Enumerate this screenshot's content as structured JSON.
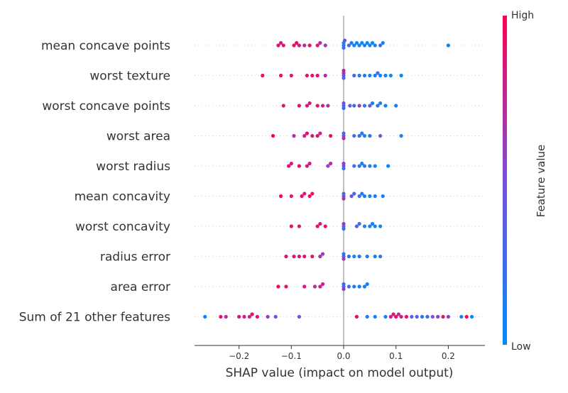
{
  "chart_data": {
    "type": "scatter",
    "subtype": "shap-beeswarm",
    "xlabel": "SHAP value (impact on model output)",
    "xlim": [
      -0.285,
      0.27
    ],
    "xticks": [
      -0.2,
      -0.1,
      0.0,
      0.1,
      0.2
    ],
    "xtick_labels": [
      "−0.2",
      "−0.1",
      "0.0",
      "0.1",
      "0.2"
    ],
    "grid": false,
    "colorbar": {
      "label": "Feature value",
      "high_label": "High",
      "low_label": "Low",
      "low_color": "#008bfb",
      "high_color": "#ff0052"
    },
    "features": [
      {
        "name": "mean concave points",
        "points": [
          [
            -0.125,
            0.9
          ],
          [
            -0.12,
            0.8
          ],
          [
            -0.115,
            0.85
          ],
          [
            -0.095,
            0.9
          ],
          [
            -0.09,
            0.95
          ],
          [
            -0.085,
            0.8
          ],
          [
            -0.075,
            0.75
          ],
          [
            -0.065,
            0.9
          ],
          [
            -0.05,
            0.85
          ],
          [
            -0.045,
            0.7
          ],
          [
            -0.035,
            0.6
          ],
          [
            0.0,
            0.3
          ],
          [
            0.0,
            0.1
          ],
          [
            0.0,
            0.2
          ],
          [
            0.002,
            0.4
          ],
          [
            0.01,
            0.25
          ],
          [
            0.015,
            0.15
          ],
          [
            0.02,
            0.1
          ],
          [
            0.025,
            0.05
          ],
          [
            0.03,
            0.1
          ],
          [
            0.035,
            0.05
          ],
          [
            0.04,
            0.1
          ],
          [
            0.045,
            0.05
          ],
          [
            0.05,
            0.1
          ],
          [
            0.055,
            0.05
          ],
          [
            0.06,
            0.15
          ],
          [
            0.07,
            0.2
          ],
          [
            0.075,
            0.1
          ],
          [
            0.2,
            0.05
          ]
        ]
      },
      {
        "name": "worst texture",
        "points": [
          [
            -0.155,
            0.95
          ],
          [
            -0.12,
            0.9
          ],
          [
            -0.1,
            0.85
          ],
          [
            -0.07,
            0.9
          ],
          [
            -0.06,
            0.85
          ],
          [
            -0.05,
            0.9
          ],
          [
            -0.035,
            0.7
          ],
          [
            0.0,
            0.5
          ],
          [
            0.0,
            0.6
          ],
          [
            0.0,
            0.3
          ],
          [
            0.0,
            0.8
          ],
          [
            0.02,
            0.3
          ],
          [
            0.03,
            0.2
          ],
          [
            0.04,
            0.15
          ],
          [
            0.05,
            0.1
          ],
          [
            0.06,
            0.1
          ],
          [
            0.065,
            0.2
          ],
          [
            0.07,
            0.05
          ],
          [
            0.08,
            0.1
          ],
          [
            0.09,
            0.05
          ],
          [
            0.11,
            0.05
          ]
        ]
      },
      {
        "name": "worst concave points",
        "points": [
          [
            -0.115,
            0.85
          ],
          [
            -0.085,
            0.9
          ],
          [
            -0.07,
            0.8
          ],
          [
            -0.065,
            0.85
          ],
          [
            -0.05,
            0.9
          ],
          [
            -0.04,
            0.8
          ],
          [
            -0.03,
            0.7
          ],
          [
            0.0,
            0.3
          ],
          [
            0.0,
            0.5
          ],
          [
            0.0,
            0.2
          ],
          [
            0.012,
            0.4
          ],
          [
            0.02,
            0.3
          ],
          [
            0.03,
            0.6
          ],
          [
            0.04,
            0.2
          ],
          [
            0.05,
            0.4
          ],
          [
            0.055,
            0.1
          ],
          [
            0.065,
            0.2
          ],
          [
            0.07,
            0.1
          ],
          [
            0.08,
            0.05
          ],
          [
            0.1,
            0.1
          ]
        ]
      },
      {
        "name": "worst area",
        "points": [
          [
            -0.135,
            0.95
          ],
          [
            -0.095,
            0.7
          ],
          [
            -0.075,
            0.8
          ],
          [
            -0.07,
            0.9
          ],
          [
            -0.06,
            0.85
          ],
          [
            -0.05,
            0.9
          ],
          [
            -0.045,
            0.8
          ],
          [
            -0.025,
            0.95
          ],
          [
            0.0,
            0.5
          ],
          [
            0.0,
            0.3
          ],
          [
            0.0,
            0.7
          ],
          [
            0.02,
            0.3
          ],
          [
            0.03,
            0.2
          ],
          [
            0.035,
            0.1
          ],
          [
            0.04,
            0.15
          ],
          [
            0.05,
            0.1
          ],
          [
            0.07,
            0.4
          ],
          [
            0.11,
            0.05
          ]
        ]
      },
      {
        "name": "worst radius",
        "points": [
          [
            -0.105,
            0.9
          ],
          [
            -0.1,
            0.85
          ],
          [
            -0.085,
            0.9
          ],
          [
            -0.07,
            0.8
          ],
          [
            -0.065,
            0.85
          ],
          [
            -0.03,
            0.6
          ],
          [
            -0.025,
            0.7
          ],
          [
            0.0,
            0.4
          ],
          [
            0.0,
            0.6
          ],
          [
            0.0,
            0.2
          ],
          [
            0.02,
            0.3
          ],
          [
            0.03,
            0.2
          ],
          [
            0.035,
            0.1
          ],
          [
            0.04,
            0.2
          ],
          [
            0.05,
            0.15
          ],
          [
            0.06,
            0.1
          ],
          [
            0.085,
            0.05
          ]
        ]
      },
      {
        "name": "mean concavity",
        "points": [
          [
            -0.12,
            0.95
          ],
          [
            -0.1,
            0.85
          ],
          [
            -0.08,
            0.9
          ],
          [
            -0.075,
            0.85
          ],
          [
            -0.065,
            0.9
          ],
          [
            -0.06,
            0.95
          ],
          [
            0.0,
            0.5
          ],
          [
            0.0,
            0.3
          ],
          [
            0.0,
            0.7
          ],
          [
            0.015,
            0.4
          ],
          [
            0.02,
            0.3
          ],
          [
            0.03,
            0.2
          ],
          [
            0.035,
            0.1
          ],
          [
            0.04,
            0.15
          ],
          [
            0.05,
            0.1
          ],
          [
            0.06,
            0.1
          ],
          [
            0.075,
            0.05
          ]
        ]
      },
      {
        "name": "worst concavity",
        "points": [
          [
            -0.1,
            0.9
          ],
          [
            -0.085,
            0.85
          ],
          [
            -0.05,
            0.9
          ],
          [
            -0.045,
            0.85
          ],
          [
            -0.035,
            0.9
          ],
          [
            0.0,
            0.4
          ],
          [
            0.0,
            0.6
          ],
          [
            0.0,
            0.2
          ],
          [
            0.025,
            0.3
          ],
          [
            0.03,
            0.2
          ],
          [
            0.04,
            0.15
          ],
          [
            0.05,
            0.1
          ],
          [
            0.055,
            0.05
          ],
          [
            0.06,
            0.1
          ],
          [
            0.07,
            0.05
          ]
        ]
      },
      {
        "name": "radius error",
        "points": [
          [
            -0.11,
            0.9
          ],
          [
            -0.095,
            0.85
          ],
          [
            -0.085,
            0.9
          ],
          [
            -0.075,
            0.85
          ],
          [
            -0.06,
            0.9
          ],
          [
            -0.045,
            0.7
          ],
          [
            -0.04,
            0.6
          ],
          [
            0.0,
            0.4
          ],
          [
            0.0,
            0.2
          ],
          [
            0.0,
            0.6
          ],
          [
            0.01,
            0.2
          ],
          [
            0.02,
            0.1
          ],
          [
            0.03,
            0.15
          ],
          [
            0.045,
            0.1
          ],
          [
            0.06,
            0.05
          ],
          [
            0.07,
            0.1
          ]
        ]
      },
      {
        "name": "area error",
        "points": [
          [
            -0.125,
            0.95
          ],
          [
            -0.11,
            0.9
          ],
          [
            -0.075,
            0.85
          ],
          [
            -0.055,
            0.7
          ],
          [
            -0.045,
            0.8
          ],
          [
            -0.04,
            0.75
          ],
          [
            0.0,
            0.4
          ],
          [
            0.0,
            0.2
          ],
          [
            0.0,
            0.6
          ],
          [
            0.01,
            0.2
          ],
          [
            0.02,
            0.15
          ],
          [
            0.03,
            0.1
          ],
          [
            0.04,
            0.1
          ],
          [
            0.045,
            0.05
          ]
        ]
      },
      {
        "name": "Sum of 21 other features",
        "points": [
          [
            -0.265,
            0.05
          ],
          [
            -0.235,
            0.9
          ],
          [
            -0.225,
            0.7
          ],
          [
            -0.2,
            0.85
          ],
          [
            -0.19,
            0.8
          ],
          [
            -0.18,
            0.75
          ],
          [
            -0.175,
            0.9
          ],
          [
            -0.165,
            0.85
          ],
          [
            -0.145,
            0.6
          ],
          [
            -0.13,
            0.5
          ],
          [
            -0.085,
            0.45
          ],
          [
            0.025,
            0.9
          ],
          [
            0.045,
            0.1
          ],
          [
            0.06,
            0.1
          ],
          [
            0.08,
            0.15
          ],
          [
            0.09,
            0.8
          ],
          [
            0.095,
            0.85
          ],
          [
            0.1,
            0.9
          ],
          [
            0.105,
            0.75
          ],
          [
            0.11,
            0.85
          ],
          [
            0.12,
            0.9
          ],
          [
            0.13,
            0.4
          ],
          [
            0.14,
            0.3
          ],
          [
            0.15,
            0.2
          ],
          [
            0.16,
            0.25
          ],
          [
            0.17,
            0.5
          ],
          [
            0.18,
            0.55
          ],
          [
            0.19,
            0.85
          ],
          [
            0.2,
            0.6
          ],
          [
            0.225,
            0.1
          ],
          [
            0.235,
            0.95
          ],
          [
            0.245,
            0.05
          ]
        ]
      }
    ]
  }
}
